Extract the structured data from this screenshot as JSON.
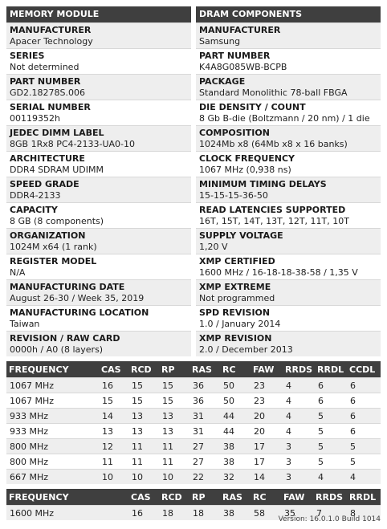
{
  "memory_module": {
    "header": "MEMORY MODULE",
    "items": [
      {
        "label": "MANUFACTURER",
        "value": "Apacer Technology"
      },
      {
        "label": "SERIES",
        "value": "Not determined"
      },
      {
        "label": "PART NUMBER",
        "value": "GD2.18278S.006"
      },
      {
        "label": "SERIAL NUMBER",
        "value": "00119352h"
      },
      {
        "label": "JEDEC DIMM LABEL",
        "value": "8GB 1Rx8 PC4-2133-UA0-10"
      },
      {
        "label": "ARCHITECTURE",
        "value": "DDR4 SDRAM UDIMM"
      },
      {
        "label": "SPEED GRADE",
        "value": "DDR4-2133"
      },
      {
        "label": "CAPACITY",
        "value": "8 GB (8 components)"
      },
      {
        "label": "ORGANIZATION",
        "value": "1024M x64 (1 rank)"
      },
      {
        "label": "REGISTER MODEL",
        "value": "N/A"
      },
      {
        "label": "MANUFACTURING DATE",
        "value": "August 26-30 / Week 35, 2019"
      },
      {
        "label": "MANUFACTURING LOCATION",
        "value": "Taiwan"
      },
      {
        "label": "REVISION / RAW CARD",
        "value": "0000h / A0 (8 layers)"
      }
    ]
  },
  "dram_components": {
    "header": "DRAM COMPONENTS",
    "items": [
      {
        "label": "MANUFACTURER",
        "value": "Samsung"
      },
      {
        "label": "PART NUMBER",
        "value": "K4A8G085WB-BCPB"
      },
      {
        "label": "PACKAGE",
        "value": "Standard Monolithic 78-ball FBGA"
      },
      {
        "label": "DIE DENSITY / COUNT",
        "value": "8 Gb B-die (Boltzmann / 20 nm) / 1 die"
      },
      {
        "label": "COMPOSITION",
        "value": "1024Mb x8 (64Mb x8 x 16 banks)"
      },
      {
        "label": "CLOCK FREQUENCY",
        "value": "1067 MHz (0,938 ns)"
      },
      {
        "label": "MINIMUM TIMING DELAYS",
        "value": "15-15-15-36-50"
      },
      {
        "label": "READ LATENCIES SUPPORTED",
        "value": "16T, 15T, 14T, 13T, 12T, 11T, 10T"
      },
      {
        "label": "SUPPLY VOLTAGE",
        "value": "1,20 V"
      },
      {
        "label": "XMP CERTIFIED",
        "value": "1600 MHz / 16-18-18-38-58 / 1,35 V"
      },
      {
        "label": "XMP EXTREME",
        "value": "Not programmed"
      },
      {
        "label": "SPD REVISION",
        "value": "1.0 / January 2014"
      },
      {
        "label": "XMP REVISION",
        "value": "2.0 / December 2013"
      }
    ]
  },
  "jedec_timings": {
    "columns": [
      "FREQUENCY",
      "CAS",
      "RCD",
      "RP",
      "RAS",
      "RC",
      "FAW",
      "RRDS",
      "RRDL",
      "CCDL"
    ],
    "rows": [
      [
        "1067 MHz",
        "16",
        "15",
        "15",
        "36",
        "50",
        "23",
        "4",
        "6",
        "6"
      ],
      [
        "1067 MHz",
        "15",
        "15",
        "15",
        "36",
        "50",
        "23",
        "4",
        "6",
        "6"
      ],
      [
        "933 MHz",
        "14",
        "13",
        "13",
        "31",
        "44",
        "20",
        "4",
        "5",
        "6"
      ],
      [
        "933 MHz",
        "13",
        "13",
        "13",
        "31",
        "44",
        "20",
        "4",
        "5",
        "6"
      ],
      [
        "800 MHz",
        "12",
        "11",
        "11",
        "27",
        "38",
        "17",
        "3",
        "5",
        "5"
      ],
      [
        "800 MHz",
        "11",
        "11",
        "11",
        "27",
        "38",
        "17",
        "3",
        "5",
        "5"
      ],
      [
        "667 MHz",
        "10",
        "10",
        "10",
        "22",
        "32",
        "14",
        "3",
        "4",
        "4"
      ]
    ]
  },
  "xmp_timings": {
    "columns": [
      "FREQUENCY",
      "CAS",
      "RCD",
      "RP",
      "RAS",
      "RC",
      "FAW",
      "RRDS",
      "RRDL"
    ],
    "rows": [
      [
        "1600 MHz",
        "16",
        "18",
        "18",
        "38",
        "58",
        "35",
        "7",
        "8"
      ]
    ]
  },
  "version": "Version: 16.0.1.0 Build 1014"
}
